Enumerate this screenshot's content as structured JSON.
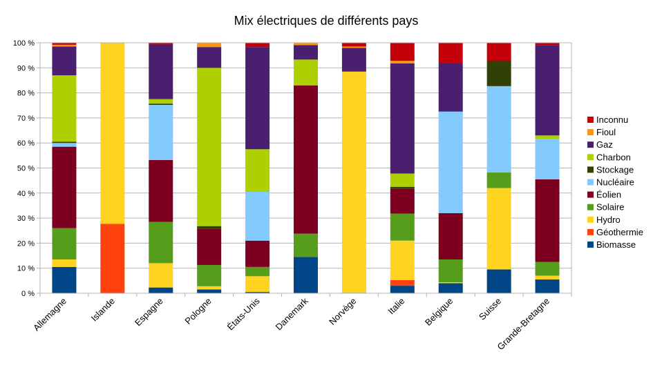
{
  "chart_data": {
    "type": "bar",
    "stacked": true,
    "percent_stacked": true,
    "title": "Mix électriques de différents pays",
    "xlabel": "",
    "ylabel": "",
    "ylim": [
      0,
      100
    ],
    "grid": true,
    "legend_position": "right",
    "y_ticks": [
      "0 %",
      "10 %",
      "20 %",
      "30 %",
      "40 %",
      "50 %",
      "60 %",
      "70 %",
      "80 %",
      "90 %",
      "100 %"
    ],
    "categories": [
      "Allemagne",
      "Islande",
      "Espagne",
      "Pologne",
      "États-Unis",
      "Danemark",
      "Norvège",
      "Italie",
      "Belgique",
      "Suisse",
      "Grande-Bretagne"
    ],
    "series": [
      {
        "name": "Biomasse",
        "color": "#004586",
        "values": [
          10.5,
          0,
          2.3,
          1.5,
          0.5,
          14.5,
          0.2,
          3,
          4,
          9.5,
          5.5
        ]
      },
      {
        "name": "Géothermie",
        "color": "#ff420e",
        "values": [
          0,
          27.7,
          0,
          0,
          0,
          0,
          0,
          2.3,
          0,
          0,
          0
        ]
      },
      {
        "name": "Hydro",
        "color": "#ffd320",
        "values": [
          3,
          72.3,
          9.7,
          1.3,
          6.3,
          0,
          88.3,
          15.7,
          0.4,
          32.5,
          1.5
        ]
      },
      {
        "name": "Solaire",
        "color": "#579d1c",
        "values": [
          12.5,
          0,
          16.5,
          8.5,
          3.7,
          9.3,
          0,
          10.8,
          9.1,
          6.2,
          5.5
        ]
      },
      {
        "name": "Éolien",
        "color": "#7e0021",
        "values": [
          32.5,
          0,
          24.7,
          14.5,
          10.5,
          59.2,
          0,
          10,
          18.5,
          0,
          33
        ]
      },
      {
        "name": "Nucléaire",
        "color": "#83caff",
        "values": [
          1.5,
          0,
          22,
          0,
          19.5,
          0,
          0,
          0,
          40.5,
          34.5,
          16
        ]
      },
      {
        "name": "Stockage",
        "color": "#314004",
        "values": [
          0.5,
          0,
          0.5,
          1,
          0,
          0,
          0,
          0.7,
          0.2,
          10,
          0
        ]
      },
      {
        "name": "Charbon",
        "color": "#aecf00",
        "values": [
          26.5,
          0,
          1.8,
          63.2,
          17,
          10.3,
          0,
          5.3,
          0,
          0,
          1.5
        ]
      },
      {
        "name": "Gaz",
        "color": "#4b1f6f",
        "values": [
          11.5,
          0,
          21.8,
          8.3,
          40.8,
          5.8,
          9.5,
          44,
          19.3,
          0,
          36
        ]
      },
      {
        "name": "Fioul",
        "color": "#ff950e",
        "values": [
          0.7,
          0,
          0,
          1.7,
          0,
          0.9,
          0.5,
          1,
          0,
          0,
          0
        ]
      },
      {
        "name": "Inconnu",
        "color": "#c5000b",
        "values": [
          0.8,
          0,
          0.7,
          0,
          1.7,
          0,
          1.5,
          7.2,
          8,
          7.3,
          1
        ]
      }
    ]
  }
}
